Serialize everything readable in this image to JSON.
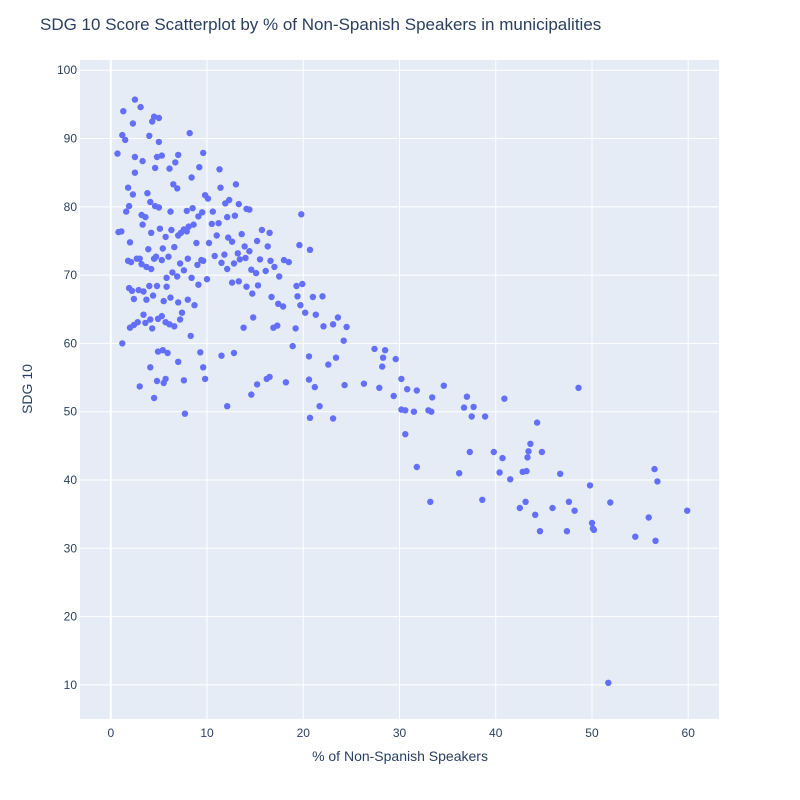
{
  "chart_data": {
    "type": "scatter",
    "title": "SDG 10 Score Scatterplot by % of Non-Spanish Speakers in municipalities",
    "xlabel": "% of Non-Spanish Speakers",
    "ylabel": "SDG 10",
    "xlim": [
      -3.2,
      63.2
    ],
    "ylim": [
      5,
      101.5
    ],
    "xticks": [
      0,
      10,
      20,
      30,
      40,
      50,
      60
    ],
    "yticks": [
      10,
      20,
      30,
      40,
      50,
      60,
      70,
      80,
      90,
      100
    ],
    "grid": true,
    "legend": "none",
    "colors": {
      "marker": "#636efa",
      "plot_bg": "#e5ecf6",
      "grid": "#ffffff",
      "text": "#2a3f5f"
    },
    "series": [
      {
        "points": [
          [
            0.7,
            87.8
          ],
          [
            1.2,
            90.5
          ],
          [
            1.3,
            94.0
          ],
          [
            1.5,
            89.8
          ],
          [
            2.3,
            92.2
          ],
          [
            2.5,
            95.7
          ],
          [
            3.1,
            94.6
          ],
          [
            4.0,
            90.4
          ],
          [
            4.3,
            92.5
          ],
          [
            4.5,
            93.2
          ],
          [
            5.0,
            93.0
          ],
          [
            5.0,
            89.5
          ],
          [
            1.8,
            82.8
          ],
          [
            2.5,
            87.3
          ],
          [
            3.3,
            86.7
          ],
          [
            4.8,
            87.3
          ],
          [
            5.3,
            87.5
          ],
          [
            6.1,
            85.6
          ],
          [
            6.7,
            86.5
          ],
          [
            7.0,
            87.6
          ],
          [
            8.2,
            90.8
          ],
          [
            9.2,
            85.8
          ],
          [
            9.6,
            87.9
          ],
          [
            11.3,
            85.5
          ],
          [
            1.6,
            79.3
          ],
          [
            1.9,
            80.1
          ],
          [
            2.3,
            81.8
          ],
          [
            2.5,
            85.0
          ],
          [
            3.2,
            78.8
          ],
          [
            3.8,
            82.0
          ],
          [
            4.1,
            80.7
          ],
          [
            4.6,
            80.1
          ],
          [
            4.6,
            85.7
          ],
          [
            5.0,
            79.9
          ],
          [
            6.2,
            79.3
          ],
          [
            6.5,
            83.3
          ],
          [
            6.9,
            82.7
          ],
          [
            7.9,
            79.4
          ],
          [
            8.4,
            84.3
          ],
          [
            8.5,
            79.8
          ],
          [
            9.1,
            78.6
          ],
          [
            9.5,
            79.2
          ],
          [
            9.8,
            81.7
          ],
          [
            10.1,
            81.2
          ],
          [
            10.6,
            79.3
          ],
          [
            11.4,
            82.8
          ],
          [
            11.9,
            80.5
          ],
          [
            12.1,
            78.5
          ],
          [
            12.3,
            81.0
          ],
          [
            12.9,
            78.7
          ],
          [
            13.0,
            83.3
          ],
          [
            13.3,
            80.4
          ],
          [
            14.1,
            79.7
          ],
          [
            14.4,
            79.6
          ],
          [
            19.8,
            78.9
          ],
          [
            0.8,
            76.3
          ],
          [
            1.1,
            76.4
          ],
          [
            2.0,
            74.8
          ],
          [
            3.0,
            72.4
          ],
          [
            3.3,
            77.4
          ],
          [
            3.6,
            78.5
          ],
          [
            3.9,
            73.8
          ],
          [
            4.2,
            76.2
          ],
          [
            4.7,
            72.7
          ],
          [
            5.1,
            76.8
          ],
          [
            5.4,
            73.9
          ],
          [
            5.7,
            75.6
          ],
          [
            6.3,
            76.6
          ],
          [
            6.6,
            74.1
          ],
          [
            7.0,
            75.8
          ],
          [
            7.3,
            76.2
          ],
          [
            7.6,
            76.7
          ],
          [
            7.9,
            76.4
          ],
          [
            8.1,
            77.1
          ],
          [
            8.6,
            77.4
          ],
          [
            8.9,
            74.7
          ],
          [
            9.4,
            72.2
          ],
          [
            10.2,
            74.7
          ],
          [
            10.5,
            77.5
          ],
          [
            11.0,
            75.8
          ],
          [
            11.2,
            77.6
          ],
          [
            11.8,
            73.0
          ],
          [
            12.2,
            75.5
          ],
          [
            12.6,
            74.9
          ],
          [
            13.2,
            73.2
          ],
          [
            13.6,
            76.0
          ],
          [
            13.9,
            74.2
          ],
          [
            14.4,
            73.5
          ],
          [
            15.2,
            75.0
          ],
          [
            15.7,
            76.6
          ],
          [
            16.3,
            74.2
          ],
          [
            16.5,
            76.2
          ],
          [
            19.6,
            74.4
          ],
          [
            20.7,
            73.7
          ],
          [
            1.8,
            72.1
          ],
          [
            2.1,
            71.9
          ],
          [
            2.7,
            72.4
          ],
          [
            3.2,
            71.6
          ],
          [
            3.7,
            71.2
          ],
          [
            4.2,
            70.9
          ],
          [
            4.5,
            72.4
          ],
          [
            5.3,
            72.2
          ],
          [
            5.8,
            69.6
          ],
          [
            6.0,
            72.7
          ],
          [
            6.4,
            70.4
          ],
          [
            6.9,
            69.8
          ],
          [
            7.2,
            71.7
          ],
          [
            7.6,
            70.7
          ],
          [
            8.0,
            72.4
          ],
          [
            8.4,
            69.6
          ],
          [
            9.0,
            71.5
          ],
          [
            9.6,
            72.1
          ],
          [
            10.0,
            69.4
          ],
          [
            10.8,
            72.8
          ],
          [
            11.5,
            71.8
          ],
          [
            12.1,
            70.9
          ],
          [
            12.8,
            71.7
          ],
          [
            13.4,
            72.3
          ],
          [
            14.0,
            72.5
          ],
          [
            14.6,
            70.8
          ],
          [
            15.1,
            70.3
          ],
          [
            15.5,
            72.3
          ],
          [
            16.1,
            70.6
          ],
          [
            16.6,
            72.1
          ],
          [
            17.0,
            71.2
          ],
          [
            17.5,
            69.8
          ],
          [
            18.0,
            72.2
          ],
          [
            18.5,
            71.9
          ],
          [
            19.3,
            68.4
          ],
          [
            19.9,
            68.7
          ],
          [
            1.9,
            68.1
          ],
          [
            2.2,
            67.7
          ],
          [
            2.4,
            66.5
          ],
          [
            2.9,
            67.8
          ],
          [
            3.4,
            67.6
          ],
          [
            3.7,
            66.4
          ],
          [
            4.0,
            68.4
          ],
          [
            4.4,
            67.0
          ],
          [
            4.8,
            68.4
          ],
          [
            5.5,
            66.2
          ],
          [
            5.8,
            68.3
          ],
          [
            6.2,
            66.7
          ],
          [
            7.0,
            66.0
          ],
          [
            7.4,
            64.5
          ],
          [
            8.0,
            66.4
          ],
          [
            8.7,
            65.6
          ],
          [
            9.1,
            68.6
          ],
          [
            12.6,
            68.9
          ],
          [
            13.3,
            69.1
          ],
          [
            14.1,
            68.3
          ],
          [
            14.7,
            67.3
          ],
          [
            15.3,
            68.5
          ],
          [
            16.7,
            66.8
          ],
          [
            17.4,
            65.8
          ],
          [
            17.9,
            65.4
          ],
          [
            19.4,
            66.9
          ],
          [
            19.7,
            65.6
          ],
          [
            20.2,
            64.5
          ],
          [
            21.0,
            66.8
          ],
          [
            22.0,
            66.9
          ],
          [
            23.6,
            63.8
          ],
          [
            2.0,
            62.3
          ],
          [
            2.4,
            62.7
          ],
          [
            2.8,
            63.1
          ],
          [
            3.4,
            64.2
          ],
          [
            3.6,
            63.0
          ],
          [
            4.1,
            63.5
          ],
          [
            4.3,
            62.2
          ],
          [
            4.9,
            63.6
          ],
          [
            5.3,
            64.0
          ],
          [
            5.7,
            63.1
          ],
          [
            6.1,
            62.8
          ],
          [
            6.6,
            62.5
          ],
          [
            7.2,
            63.5
          ],
          [
            8.3,
            61.1
          ],
          [
            13.8,
            62.3
          ],
          [
            14.8,
            63.8
          ],
          [
            16.9,
            62.3
          ],
          [
            17.3,
            62.6
          ],
          [
            19.2,
            62.2
          ],
          [
            21.3,
            64.2
          ],
          [
            22.1,
            62.5
          ],
          [
            23.1,
            62.8
          ],
          [
            24.5,
            62.4
          ],
          [
            24.2,
            60.4
          ],
          [
            1.2,
            60.0
          ],
          [
            4.1,
            56.5
          ],
          [
            4.9,
            58.8
          ],
          [
            5.4,
            59.0
          ],
          [
            5.9,
            58.6
          ],
          [
            7.0,
            57.3
          ],
          [
            9.3,
            58.7
          ],
          [
            9.6,
            56.5
          ],
          [
            11.5,
            58.2
          ],
          [
            12.8,
            58.6
          ],
          [
            18.9,
            59.6
          ],
          [
            20.6,
            58.1
          ],
          [
            22.6,
            56.9
          ],
          [
            23.4,
            57.9
          ],
          [
            27.4,
            59.2
          ],
          [
            28.3,
            57.9
          ],
          [
            28.5,
            59.0
          ],
          [
            29.6,
            57.7
          ],
          [
            3.0,
            53.7
          ],
          [
            4.5,
            52.0
          ],
          [
            4.8,
            54.5
          ],
          [
            5.5,
            54.2
          ],
          [
            5.7,
            54.8
          ],
          [
            7.6,
            54.6
          ],
          [
            9.8,
            54.8
          ],
          [
            14.6,
            52.5
          ],
          [
            15.2,
            54.0
          ],
          [
            16.2,
            54.8
          ],
          [
            16.5,
            55.1
          ],
          [
            18.2,
            54.3
          ],
          [
            20.6,
            54.7
          ],
          [
            21.2,
            53.6
          ],
          [
            24.3,
            53.9
          ],
          [
            26.3,
            54.1
          ],
          [
            27.9,
            53.5
          ],
          [
            28.2,
            56.6
          ],
          [
            30.2,
            54.8
          ],
          [
            30.8,
            53.3
          ],
          [
            31.8,
            53.1
          ],
          [
            34.6,
            53.8
          ],
          [
            48.6,
            53.5
          ],
          [
            7.7,
            49.7
          ],
          [
            12.1,
            50.8
          ],
          [
            20.7,
            49.1
          ],
          [
            21.7,
            50.8
          ],
          [
            23.1,
            49.0
          ],
          [
            29.4,
            52.3
          ],
          [
            30.2,
            50.3
          ],
          [
            30.6,
            50.2
          ],
          [
            31.5,
            50.0
          ],
          [
            33.0,
            50.2
          ],
          [
            33.4,
            52.1
          ],
          [
            33.3,
            50.0
          ],
          [
            36.7,
            50.6
          ],
          [
            37.0,
            52.2
          ],
          [
            37.5,
            49.3
          ],
          [
            37.7,
            50.7
          ],
          [
            38.9,
            49.3
          ],
          [
            40.9,
            51.9
          ],
          [
            30.6,
            46.7
          ],
          [
            31.8,
            41.9
          ],
          [
            33.2,
            36.8
          ],
          [
            36.2,
            41.0
          ],
          [
            37.3,
            44.1
          ],
          [
            38.6,
            37.1
          ],
          [
            39.8,
            44.1
          ],
          [
            40.4,
            41.1
          ],
          [
            40.7,
            43.2
          ],
          [
            41.5,
            40.1
          ],
          [
            42.5,
            35.9
          ],
          [
            42.8,
            41.2
          ],
          [
            43.1,
            36.8
          ],
          [
            43.2,
            41.3
          ],
          [
            43.3,
            43.3
          ],
          [
            43.4,
            44.2
          ],
          [
            43.6,
            45.3
          ],
          [
            44.1,
            34.9
          ],
          [
            44.3,
            48.4
          ],
          [
            44.6,
            32.5
          ],
          [
            44.8,
            44.1
          ],
          [
            45.9,
            35.9
          ],
          [
            46.7,
            40.9
          ],
          [
            47.4,
            32.5
          ],
          [
            47.6,
            36.8
          ],
          [
            48.2,
            35.5
          ],
          [
            49.8,
            39.2
          ],
          [
            50.0,
            33.7
          ],
          [
            50.1,
            32.9
          ],
          [
            50.2,
            32.7
          ],
          [
            51.9,
            36.7
          ],
          [
            54.5,
            31.7
          ],
          [
            55.9,
            34.5
          ],
          [
            56.5,
            41.6
          ],
          [
            56.6,
            31.1
          ],
          [
            56.8,
            39.8
          ],
          [
            59.9,
            35.5
          ],
          [
            51.7,
            10.3
          ]
        ]
      }
    ]
  }
}
